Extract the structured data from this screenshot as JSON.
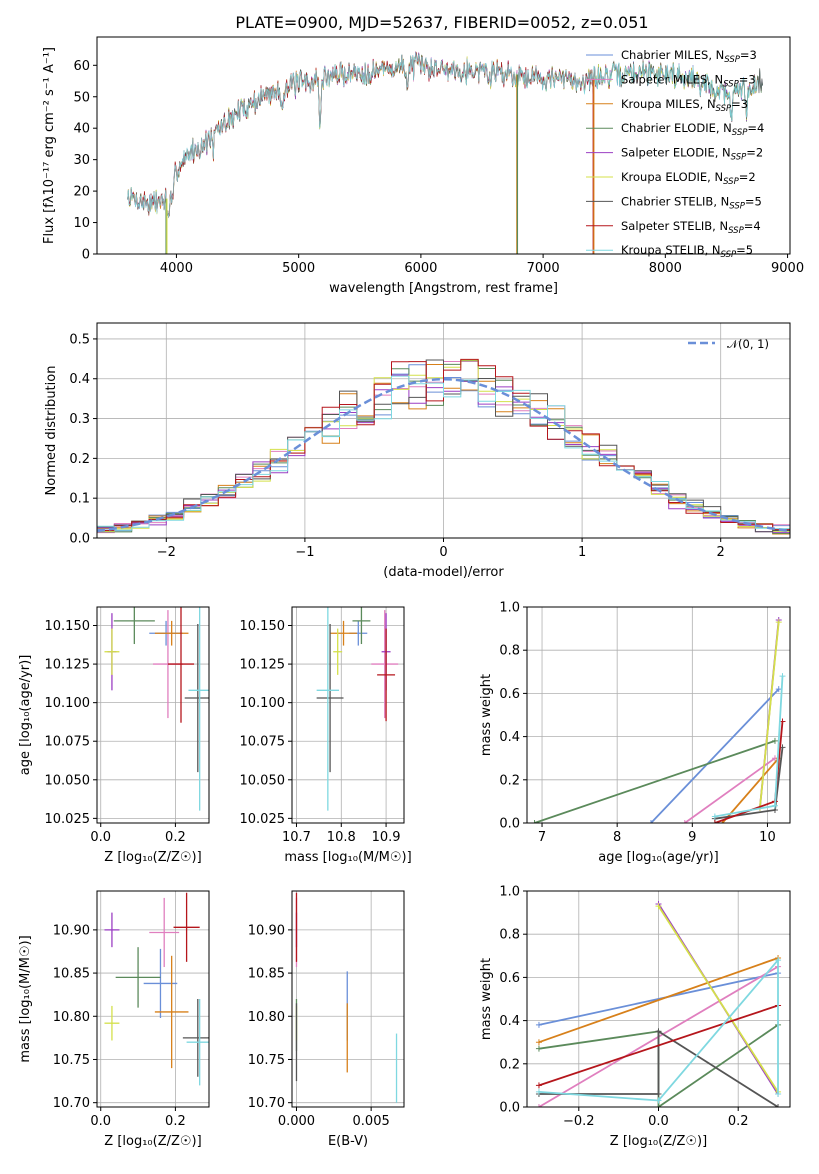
{
  "page_title": "PLATE=0900, MJD=52637, FIBERID=0052, z=0.051",
  "models": [
    {
      "name": "Chabrier MILES",
      "nssp": 3,
      "color": "#6a8fd8"
    },
    {
      "name": "Salpeter MILES",
      "nssp": 3,
      "color": "#e07fbf"
    },
    {
      "name": "Kroupa MILES",
      "nssp": 3,
      "color": "#d7801a"
    },
    {
      "name": "Chabrier ELODIE",
      "nssp": 4,
      "color": "#5b8a5b"
    },
    {
      "name": "Salpeter ELODIE",
      "nssp": 2,
      "color": "#9b3fc3"
    },
    {
      "name": "Kroupa ELODIE",
      "nssp": 2,
      "color": "#d4e04a"
    },
    {
      "name": "Chabrier STELIB",
      "nssp": 5,
      "color": "#555555"
    },
    {
      "name": "Salpeter STELIB",
      "nssp": 4,
      "color": "#b5161c"
    },
    {
      "name": "Kroupa STELIB",
      "nssp": 5,
      "color": "#7fd8e0"
    }
  ],
  "chart_data": [
    {
      "id": "spectrum",
      "type": "line",
      "title": "PLATE=0900, MJD=52637, FIBERID=0052, z=0.051",
      "xlabel": "wavelength [Angstrom, rest frame]",
      "ylabel": "Flux [fλ10⁻¹⁷ erg cm⁻² s⁻¹ A⁻¹]",
      "xlim": [
        3350,
        9020
      ],
      "ylim": [
        0,
        69
      ],
      "xticks": [
        4000,
        5000,
        6000,
        7000,
        8000,
        9000
      ],
      "yticks": [
        0,
        10,
        20,
        30,
        40,
        50,
        60
      ],
      "grid": false,
      "legend": "top-right",
      "continuum": [
        [
          3600,
          18
        ],
        [
          3800,
          16
        ],
        [
          3950,
          18
        ],
        [
          4000,
          27
        ],
        [
          4100,
          32
        ],
        [
          4200,
          34
        ],
        [
          4300,
          38
        ],
        [
          4500,
          45
        ],
        [
          4700,
          50
        ],
        [
          4900,
          53
        ],
        [
          5100,
          55
        ],
        [
          5300,
          57
        ],
        [
          5600,
          58
        ],
        [
          5900,
          60
        ],
        [
          6200,
          59
        ],
        [
          6600,
          58
        ],
        [
          7000,
          56
        ],
        [
          7300,
          55
        ],
        [
          7600,
          57
        ],
        [
          7900,
          58
        ],
        [
          8200,
          56
        ],
        [
          8500,
          51
        ],
        [
          8800,
          55
        ]
      ],
      "features": {
        "dips": [
          [
            3933,
            -8
          ],
          [
            3968,
            -6
          ],
          [
            4300,
            -5
          ],
          [
            4861,
            -6
          ],
          [
            5175,
            -16
          ],
          [
            5890,
            -7
          ],
          [
            6563,
            -3
          ],
          [
            8542,
            -10
          ],
          [
            8662,
            -10
          ]
        ],
        "spikes": [
          [
            3915,
            "#5b8a5b"
          ],
          [
            3922,
            "#d4e04a"
          ],
          [
            6785,
            "#d7801a"
          ],
          [
            6790,
            "#5b8a5b"
          ],
          [
            7410,
            "#b5161c"
          ],
          [
            7415,
            "#d7801a"
          ]
        ]
      },
      "ranges_nm": {
        "Salpeter STELIB": [
          3600,
          7420
        ],
        "Chabrier STELIB": [
          3600,
          8800
        ]
      }
    },
    {
      "id": "residuals",
      "type": "step",
      "xlabel": "(data-model)/error",
      "ylabel": "Normed distribution",
      "xlim": [
        -2.5,
        2.5
      ],
      "ylim": [
        0,
        0.54
      ],
      "xticks": [
        -2,
        -1,
        0,
        1,
        2
      ],
      "yticks": [
        0.0,
        0.1,
        0.2,
        0.3,
        0.4,
        0.5
      ],
      "grid": true,
      "legend": "top-right",
      "reference_label": "𝒩(0, 1)",
      "bins": 40
    },
    {
      "id": "age-vs-z",
      "type": "errorbar",
      "xlabel": "Z [log₁₀(Z/Z☉)]",
      "ylabel": "age  [log₁₀(age/yr)]",
      "xlim": [
        -0.01,
        0.29
      ],
      "ylim": [
        10.022,
        10.162
      ],
      "xticks": [
        0.0,
        0.2
      ],
      "yticks": [
        10.025,
        10.05,
        10.075,
        10.1,
        10.125,
        10.15
      ],
      "points": [
        {
          "model": "Chabrier MILES",
          "x": 0.175,
          "y": 10.145,
          "xerr": 0.045,
          "yerr": 0.008
        },
        {
          "model": "Salpeter MILES",
          "x": 0.18,
          "y": 10.125,
          "xerr": 0.04,
          "yerr": 0.035
        },
        {
          "model": "Kroupa MILES",
          "x": 0.19,
          "y": 10.145,
          "xerr": 0.045,
          "yerr": 0.008
        },
        {
          "model": "Chabrier ELODIE",
          "x": 0.09,
          "y": 10.153,
          "xerr": 0.055,
          "yerr": 0.015
        },
        {
          "model": "Salpeter ELODIE",
          "x": 0.03,
          "y": 10.133,
          "xerr": 0.012,
          "yerr": 0.025
        },
        {
          "model": "Kroupa ELODIE",
          "x": 0.03,
          "y": 10.133,
          "xerr": 0.02,
          "yerr": 0.015
        },
        {
          "model": "Chabrier STELIB",
          "x": 0.26,
          "y": 10.103,
          "xerr": 0.035,
          "yerr": 0.048
        },
        {
          "model": "Salpeter STELIB",
          "x": 0.215,
          "y": 10.125,
          "xerr": 0.035,
          "yerr": 0.038
        },
        {
          "model": "Kroupa STELIB",
          "x": 0.265,
          "y": 10.108,
          "xerr": 0.03,
          "yerr": 0.078
        }
      ]
    },
    {
      "id": "age-vs-mass",
      "type": "errorbar",
      "xlabel": "mass [log₁₀(M/M☉)]",
      "ylabel": "",
      "xlim": [
        10.69,
        10.94
      ],
      "ylim": [
        10.022,
        10.162
      ],
      "xticks": [
        10.7,
        10.8,
        10.9
      ],
      "yticks": [
        10.025,
        10.05,
        10.075,
        10.1,
        10.125,
        10.15
      ],
      "points": [
        {
          "model": "Chabrier MILES",
          "x": 10.838,
          "y": 10.145,
          "xerr": 0.02,
          "yerr": 0.008
        },
        {
          "model": "Salpeter MILES",
          "x": 10.897,
          "y": 10.125,
          "xerr": 0.03,
          "yerr": 0.035
        },
        {
          "model": "Kroupa MILES",
          "x": 10.805,
          "y": 10.145,
          "xerr": 0.03,
          "yerr": 0.008
        },
        {
          "model": "Chabrier ELODIE",
          "x": 10.845,
          "y": 10.153,
          "xerr": 0.02,
          "yerr": 0.015
        },
        {
          "model": "Salpeter ELODIE",
          "x": 10.9,
          "y": 10.133,
          "xerr": 0.01,
          "yerr": 0.025
        },
        {
          "model": "Kroupa ELODIE",
          "x": 10.792,
          "y": 10.133,
          "xerr": 0.01,
          "yerr": 0.015
        },
        {
          "model": "Chabrier STELIB",
          "x": 10.775,
          "y": 10.103,
          "xerr": 0.03,
          "yerr": 0.048
        },
        {
          "model": "Salpeter STELIB",
          "x": 10.9,
          "y": 10.118,
          "xerr": 0.02,
          "yerr": 0.03
        },
        {
          "model": "Kroupa STELIB",
          "x": 10.77,
          "y": 10.108,
          "xerr": 0.025,
          "yerr": 0.078
        }
      ]
    },
    {
      "id": "weight-vs-age",
      "type": "line",
      "xlabel": "age  [log₁₀(age/yr)]",
      "ylabel": "mass weight",
      "xlim": [
        6.8,
        10.3
      ],
      "ylim": [
        0,
        1.0
      ],
      "xticks": [
        7,
        8,
        9,
        10
      ],
      "yticks": [
        0.0,
        0.2,
        0.4,
        0.6,
        0.8,
        1.0
      ],
      "lines": [
        {
          "model": "Chabrier MILES",
          "x": [
            8.45,
            10.15
          ],
          "y": [
            0.0,
            0.62
          ]
        },
        {
          "model": "Salpeter MILES",
          "x": [
            8.9,
            10.1
          ],
          "y": [
            0.0,
            0.3
          ]
        },
        {
          "model": "Kroupa MILES",
          "x": [
            9.4,
            10.15
          ],
          "y": [
            0.0,
            0.3
          ]
        },
        {
          "model": "Chabrier ELODIE",
          "x": [
            6.9,
            10.1
          ],
          "y": [
            0.0,
            0.38
          ]
        },
        {
          "model": "Salpeter ELODIE",
          "x": [
            9.9,
            10.15
          ],
          "y": [
            0.07,
            0.94
          ]
        },
        {
          "model": "Kroupa ELODIE",
          "x": [
            9.9,
            10.15
          ],
          "y": [
            0.07,
            0.93
          ]
        },
        {
          "model": "Chabrier STELIB",
          "x": [
            9.3,
            10.1,
            10.2
          ],
          "y": [
            0.02,
            0.06,
            0.35
          ]
        },
        {
          "model": "Salpeter STELIB",
          "x": [
            9.3,
            10.1,
            10.2
          ],
          "y": [
            0.0,
            0.1,
            0.47
          ]
        },
        {
          "model": "Kroupa STELIB",
          "x": [
            9.3,
            10.1,
            10.2
          ],
          "y": [
            0.03,
            0.08,
            0.68
          ]
        }
      ]
    },
    {
      "id": "mass-vs-z",
      "type": "errorbar",
      "xlabel": "Z [log₁₀(Z/Z☉)]",
      "ylabel": "mass [log₁₀(M/M☉)]",
      "xlim": [
        -0.01,
        0.29
      ],
      "ylim": [
        10.695,
        10.945
      ],
      "xticks": [
        0.0,
        0.2
      ],
      "yticks": [
        10.7,
        10.75,
        10.8,
        10.85,
        10.9
      ],
      "points": [
        {
          "model": "Chabrier MILES",
          "x": 0.16,
          "y": 10.838,
          "xerr": 0.045,
          "yerr": 0.04
        },
        {
          "model": "Salpeter MILES",
          "x": 0.17,
          "y": 10.897,
          "xerr": 0.04,
          "yerr": 0.04
        },
        {
          "model": "Kroupa MILES",
          "x": 0.19,
          "y": 10.805,
          "xerr": 0.045,
          "yerr": 0.065
        },
        {
          "model": "Chabrier ELODIE",
          "x": 0.1,
          "y": 10.845,
          "xerr": 0.06,
          "yerr": 0.035
        },
        {
          "model": "Salpeter ELODIE",
          "x": 0.03,
          "y": 10.9,
          "xerr": 0.02,
          "yerr": 0.02
        },
        {
          "model": "Kroupa ELODIE",
          "x": 0.03,
          "y": 10.792,
          "xerr": 0.02,
          "yerr": 0.02
        },
        {
          "model": "Chabrier STELIB",
          "x": 0.26,
          "y": 10.775,
          "xerr": 0.04,
          "yerr": 0.045
        },
        {
          "model": "Salpeter STELIB",
          "x": 0.23,
          "y": 10.903,
          "xerr": 0.035,
          "yerr": 0.04
        },
        {
          "model": "Kroupa STELIB",
          "x": 0.265,
          "y": 10.77,
          "xerr": 0.035,
          "yerr": 0.05
        }
      ]
    },
    {
      "id": "mass-vs-ebv",
      "type": "errorbar",
      "xlabel": "E(B-V)",
      "ylabel": "",
      "xlim": [
        -0.0003,
        0.0072
      ],
      "ylim": [
        10.695,
        10.945
      ],
      "xticks": [
        0.0,
        0.005
      ],
      "yticks": [
        10.7,
        10.75,
        10.8,
        10.85,
        10.9
      ],
      "points": [
        {
          "model": "Chabrier MILES",
          "x": 0.0034,
          "y": 10.812,
          "xerr": 0.0,
          "yerr": 0.04
        },
        {
          "model": "Salpeter MILES",
          "x": 0.0,
          "y": 10.897,
          "xerr": 0.0,
          "yerr": 0.04
        },
        {
          "model": "Kroupa MILES",
          "x": 0.0034,
          "y": 10.775,
          "xerr": 0.0,
          "yerr": 0.04
        },
        {
          "model": "Chabrier ELODIE",
          "x": 0.0,
          "y": 10.79,
          "xerr": 0.0,
          "yerr": 0.03
        },
        {
          "model": "Salpeter ELODIE",
          "x": 0.0,
          "y": 10.9,
          "xerr": 0.0,
          "yerr": 0.02
        },
        {
          "model": "Kroupa ELODIE",
          "x": 0.0,
          "y": 10.792,
          "xerr": 0.0,
          "yerr": 0.02
        },
        {
          "model": "Chabrier STELIB",
          "x": 0.0,
          "y": 10.77,
          "xerr": 0.0,
          "yerr": 0.045
        },
        {
          "model": "Salpeter STELIB",
          "x": 0.0,
          "y": 10.903,
          "xerr": 0.0,
          "yerr": 0.04
        },
        {
          "model": "Kroupa STELIB",
          "x": 0.0067,
          "y": 10.74,
          "xerr": 0.0,
          "yerr": 0.04
        }
      ]
    },
    {
      "id": "weight-vs-z",
      "type": "line",
      "xlabel": "Z [log₁₀(Z/Z☉)]",
      "ylabel": "mass weight",
      "xlim": [
        -0.33,
        0.33
      ],
      "ylim": [
        0,
        1.0
      ],
      "xticks": [
        -0.2,
        0.0,
        0.2
      ],
      "yticks": [
        0.0,
        0.2,
        0.4,
        0.6,
        0.8,
        1.0
      ],
      "lines": [
        {
          "model": "Chabrier MILES",
          "x": [
            -0.3,
            0.3
          ],
          "y": [
            0.38,
            0.62
          ]
        },
        {
          "model": "Salpeter MILES",
          "x": [
            -0.3,
            0.3
          ],
          "y": [
            0.0,
            0.65
          ]
        },
        {
          "model": "Kroupa MILES",
          "x": [
            -0.3,
            0.3
          ],
          "y": [
            0.3,
            0.69
          ]
        },
        {
          "model": "Chabrier ELODIE",
          "x": [
            -0.3,
            0.0,
            0.0,
            0.3
          ],
          "y": [
            0.27,
            0.35,
            0.0,
            0.38
          ]
        },
        {
          "model": "Salpeter ELODIE",
          "x": [
            0.0,
            0.3
          ],
          "y": [
            0.94,
            0.06
          ]
        },
        {
          "model": "Kroupa ELODIE",
          "x": [
            0.0,
            0.3
          ],
          "y": [
            0.93,
            0.07
          ]
        },
        {
          "model": "Chabrier STELIB",
          "x": [
            -0.3,
            0.0,
            0.0,
            0.3
          ],
          "y": [
            0.06,
            0.06,
            0.35,
            0.0
          ]
        },
        {
          "model": "Salpeter STELIB",
          "x": [
            -0.3,
            0.3
          ],
          "y": [
            0.1,
            0.47
          ]
        },
        {
          "model": "Kroupa STELIB",
          "x": [
            -0.3,
            0.0,
            0.3,
            0.3
          ],
          "y": [
            0.07,
            0.03,
            0.68,
            0.06
          ]
        }
      ]
    }
  ]
}
